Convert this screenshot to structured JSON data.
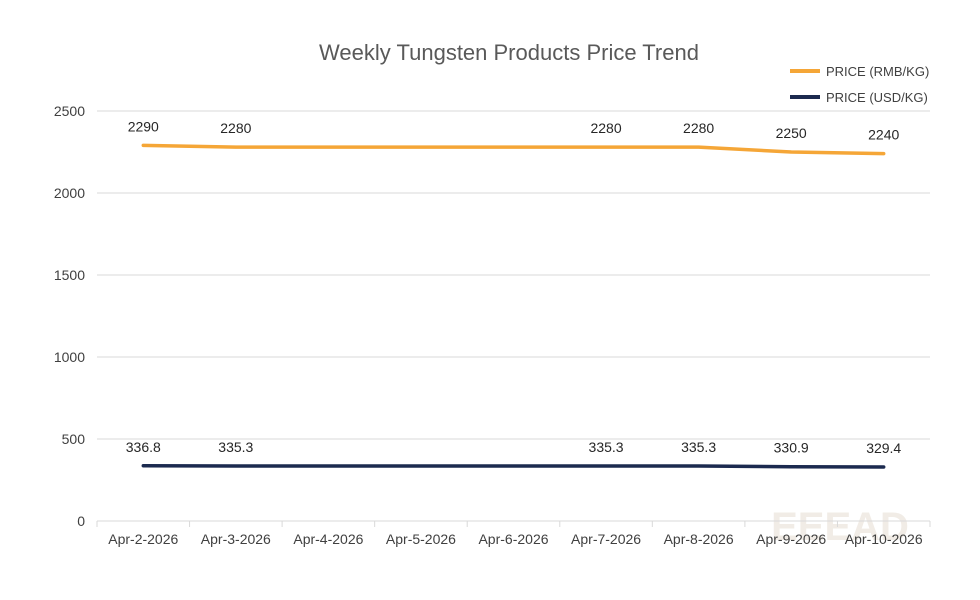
{
  "chart_data": {
    "type": "line",
    "title": "Weekly Tungsten Products Price Trend",
    "xlabel": "",
    "ylabel": "",
    "categories": [
      "Apr-2-2026",
      "Apr-3-2026",
      "Apr-4-2026",
      "Apr-5-2026",
      "Apr-6-2026",
      "Apr-7-2026",
      "Apr-8-2026",
      "Apr-9-2026",
      "Apr-10-2026"
    ],
    "ylim": [
      0,
      2500
    ],
    "yticks": [
      0,
      500,
      1000,
      1500,
      2000,
      2500
    ],
    "grid": true,
    "legend_position": "top-right",
    "series": [
      {
        "name": "PRICE (RMB/KG)",
        "color": "#f5a637",
        "values": [
          2290,
          2280,
          2280,
          2280,
          2280,
          2280,
          2280,
          2250,
          2240
        ],
        "labels": [
          "2290",
          "2280",
          "",
          "",
          "",
          "2280",
          "2280",
          "2250",
          "2240"
        ]
      },
      {
        "name": "PRICE (USD/KG)",
        "color": "#1c2a4f",
        "values": [
          336.8,
          335.3,
          335.3,
          335.3,
          335.3,
          335.3,
          335.3,
          330.9,
          329.4
        ],
        "labels": [
          "336.8",
          "335.3",
          "",
          "",
          "",
          "335.3",
          "335.3",
          "330.9",
          "329.4"
        ]
      }
    ],
    "watermark": "EEEAD"
  }
}
